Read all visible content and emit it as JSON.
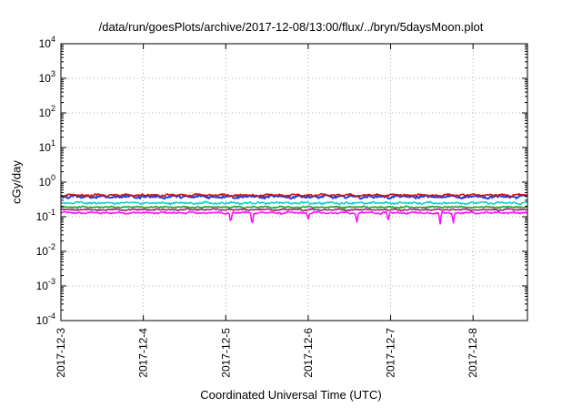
{
  "chart_data": {
    "type": "line",
    "title": "/data/run/goesPlots/archive/2017-12-08/13:00/flux/../bryn/5daysMoon.plot",
    "xlabel": "Coordinated Universal Time (UTC)",
    "ylabel": "cGy/day",
    "yscale": "log",
    "ylim": [
      0.0001,
      10000
    ],
    "xlim": [
      0,
      5.66
    ],
    "grid": true,
    "y_ticks": [
      {
        "base": "10",
        "exp": "-4",
        "value": 0.0001
      },
      {
        "base": "10",
        "exp": "-3",
        "value": 0.001
      },
      {
        "base": "10",
        "exp": "-2",
        "value": 0.01
      },
      {
        "base": "10",
        "exp": "-1",
        "value": 0.1
      },
      {
        "base": "10",
        "exp": "0",
        "value": 1
      },
      {
        "base": "10",
        "exp": "1",
        "value": 10
      },
      {
        "base": "10",
        "exp": "2",
        "value": 100
      },
      {
        "base": "10",
        "exp": "3",
        "value": 1000
      },
      {
        "base": "10",
        "exp": "4",
        "value": 10000
      }
    ],
    "x_ticks": [
      {
        "label": "2017-12-3",
        "value": 0
      },
      {
        "label": "2017-12-4",
        "value": 1
      },
      {
        "label": "2017-12-5",
        "value": 2
      },
      {
        "label": "2017-12-6",
        "value": 3
      },
      {
        "label": "2017-12-7",
        "value": 4
      },
      {
        "label": "2017-12-8",
        "value": 5
      }
    ],
    "series": [
      {
        "color": "#d01010",
        "level": 0.42,
        "noise": 0.07
      },
      {
        "color": "#2040e0",
        "level": 0.38,
        "noise": 0.09
      },
      {
        "color": "#10d0d0",
        "level": 0.25,
        "noise": 0.07
      },
      {
        "color": "#20a020",
        "level": 0.19,
        "noise": 0.05
      },
      {
        "color": "#a02080",
        "level": 0.16,
        "noise": 0.05
      },
      {
        "color": "#ff10ff",
        "level": 0.13,
        "noise": 0.06
      }
    ],
    "magenta_dips": [
      {
        "x": 2.06,
        "y": 0.06
      },
      {
        "x": 2.32,
        "y": 0.045
      },
      {
        "x": 3.0,
        "y": 0.08
      },
      {
        "x": 3.59,
        "y": 0.06
      },
      {
        "x": 3.97,
        "y": 0.07
      },
      {
        "x": 4.6,
        "y": 0.055
      },
      {
        "x": 4.76,
        "y": 0.06
      }
    ]
  }
}
